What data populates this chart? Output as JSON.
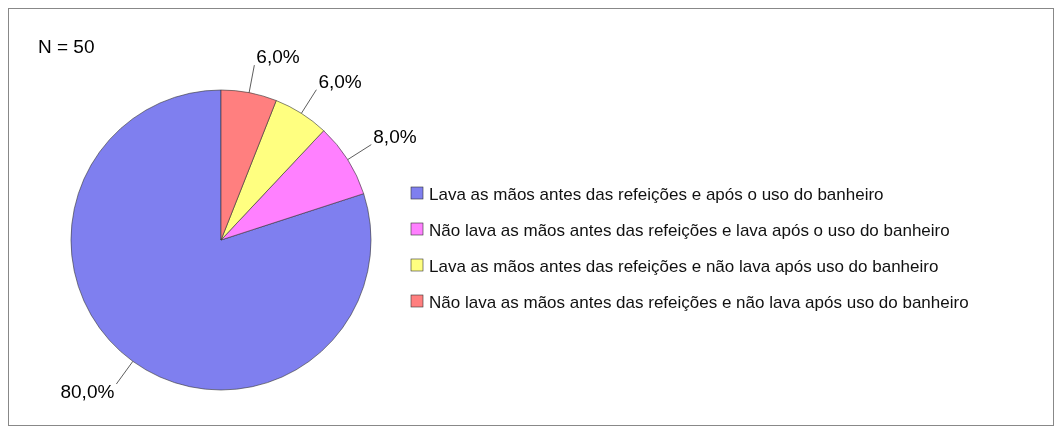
{
  "chart_data": {
    "type": "pie",
    "annotations": [
      "N = 50"
    ],
    "categories": [
      "Lava as mãos antes das refeições e após o uso do banheiro",
      "Não lava as mãos antes das refeições e lava após o uso do banheiro",
      "Lava as mãos antes das refeições e não lava após uso do banheiro",
      "Não lava as mãos antes das refeições e não lava após uso do banheiro"
    ],
    "values": [
      80,
      8,
      6,
      6
    ],
    "colors": [
      "#7f7fef",
      "#ff80ff",
      "#ffff80",
      "#ff7f7f"
    ],
    "value_labels": [
      "80,0%",
      "8,0%",
      "6,0%",
      "6,0%"
    ],
    "legend": "right"
  }
}
